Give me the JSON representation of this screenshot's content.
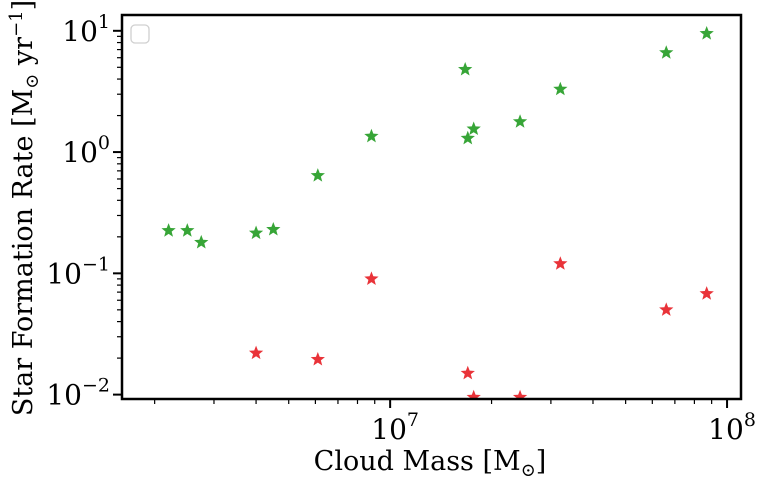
{
  "chart_data": {
    "type": "scatter",
    "xlabel": "Cloud Mass [M",
    "xlabel_sub": "⊙",
    "xlabel_end": "]",
    "ylabel": "Star Formation Rate [M",
    "ylabel_sub": "⊙",
    "ylabel_mid": " yr",
    "ylabel_sup": "−1",
    "ylabel_end": "]",
    "x_scale": "log",
    "y_scale": "log",
    "xlim": [
      1600000,
      110000000
    ],
    "ylim": [
      0.0092,
      13.5
    ],
    "x_ticks": [
      {
        "value": 10000000,
        "base": "10",
        "exp": "7"
      },
      {
        "value": 100000000,
        "base": "10",
        "exp": "8"
      }
    ],
    "y_ticks": [
      {
        "value": 0.01,
        "base": "10",
        "exp": "−2"
      },
      {
        "value": 0.1,
        "base": "10",
        "exp": "−1"
      },
      {
        "value": 1,
        "base": "10",
        "exp": "0"
      },
      {
        "value": 10,
        "base": "10",
        "exp": "1"
      }
    ],
    "legend": {
      "placement": "upper-left",
      "entries": []
    },
    "marker": "star",
    "grid": false,
    "series": [
      {
        "color": "#2ca02c",
        "points": [
          {
            "x": 2200000,
            "y": 0.225
          },
          {
            "x": 2500000,
            "y": 0.225
          },
          {
            "x": 2750000,
            "y": 0.18
          },
          {
            "x": 4000000,
            "y": 0.215
          },
          {
            "x": 4500000,
            "y": 0.23
          },
          {
            "x": 6100000,
            "y": 0.64
          },
          {
            "x": 8800000,
            "y": 1.35
          },
          {
            "x": 16700000,
            "y": 4.8
          },
          {
            "x": 17000000,
            "y": 1.3
          },
          {
            "x": 17700000,
            "y": 1.55
          },
          {
            "x": 24300000,
            "y": 1.78
          },
          {
            "x": 32000000,
            "y": 3.3
          },
          {
            "x": 66000000,
            "y": 6.6
          },
          {
            "x": 87000000,
            "y": 9.5
          }
        ]
      },
      {
        "color": "#e8282e",
        "points": [
          {
            "x": 4000000,
            "y": 0.022
          },
          {
            "x": 6100000,
            "y": 0.0195
          },
          {
            "x": 8800000,
            "y": 0.09
          },
          {
            "x": 17000000,
            "y": 0.015
          },
          {
            "x": 17700000,
            "y": 0.0095
          },
          {
            "x": 24300000,
            "y": 0.0095
          },
          {
            "x": 32000000,
            "y": 0.12
          },
          {
            "x": 66000000,
            "y": 0.05
          },
          {
            "x": 87000000,
            "y": 0.068
          }
        ]
      }
    ]
  }
}
